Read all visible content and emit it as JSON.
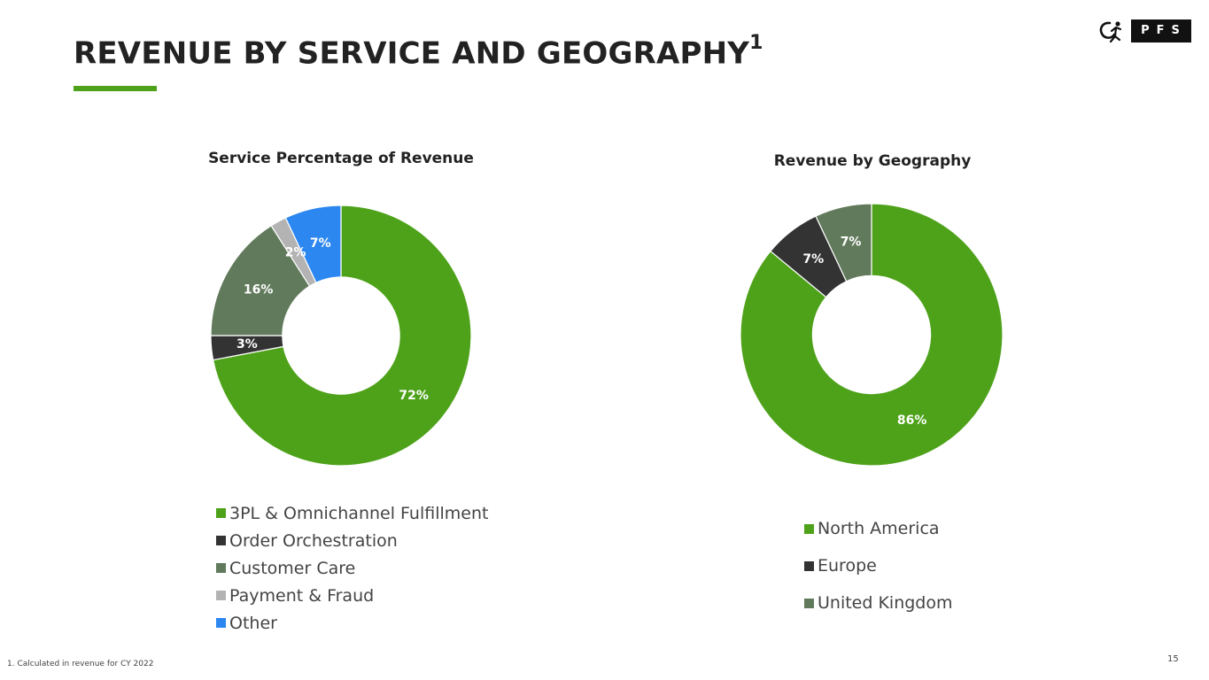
{
  "slide": {
    "title": "REVENUE BY SERVICE AND GEOGRAPHY",
    "title_superscript": "1",
    "logo_text": "PFS",
    "footnote": "1.  Calculated in revenue for CY 2022",
    "page_number": "15"
  },
  "colors": {
    "accent": "#4ea21a"
  },
  "chart_data": [
    {
      "id": "service",
      "type": "pie",
      "variant": "donut",
      "title": "Service Percentage of Revenue",
      "legend_position": "bottom",
      "categories": [
        "3PL & Omnichannel Fulfillment",
        "Order Orchestration",
        "Customer Care",
        "Payment & Fraud",
        "Other"
      ],
      "values": [
        72,
        3,
        16,
        2,
        7
      ],
      "labels": [
        "72%",
        "3%",
        "16%",
        "2%",
        "7%"
      ],
      "colors": [
        "#4ea21a",
        "#333333",
        "#617a5b",
        "#b3b3b3",
        "#2c87f0"
      ]
    },
    {
      "id": "geo",
      "type": "pie",
      "variant": "donut",
      "title": "Revenue by Geography",
      "legend_position": "bottom",
      "categories": [
        "North America",
        "Europe",
        "United Kingdom"
      ],
      "values": [
        86,
        7,
        7
      ],
      "labels": [
        "86%",
        "7%",
        "7%"
      ],
      "colors": [
        "#4ea21a",
        "#333333",
        "#617a5b"
      ]
    }
  ]
}
